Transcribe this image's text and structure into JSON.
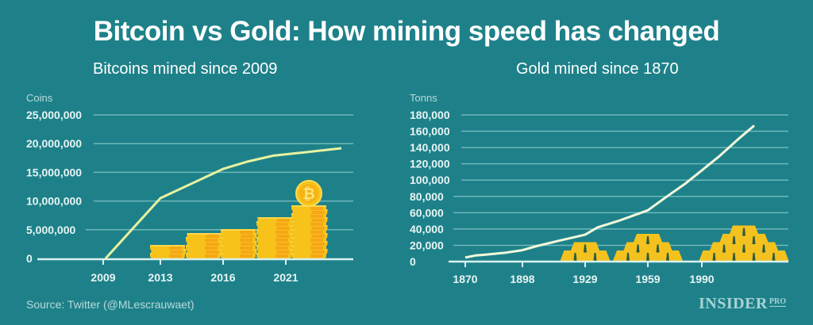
{
  "header": {
    "title": "Bitcoin vs Gold: How mining speed has changed"
  },
  "footer": {
    "source": "Source: Twitter (@MLescrauwaet)",
    "brand": "INSIDER",
    "brand_suffix": "PRO"
  },
  "colors": {
    "background": "#1e8189",
    "gridline": "#6fb7bb",
    "axis": "#d9f1f1",
    "bitcoin_line": "#e8f2a0",
    "gold_line": "#f3f8dc",
    "coin": "#f7c21a",
    "gold_bar": "#f3c21e"
  },
  "chart_data": [
    {
      "type": "line",
      "title": "Bitcoins mined since 2009",
      "xlabel": "",
      "ylabel": "Coins",
      "ylim": [
        0,
        25000000
      ],
      "yticks": [
        "0",
        "5,000,000",
        "10,000,000",
        "15,000,000",
        "20,000,000",
        "25,000,000"
      ],
      "xticks": [
        "2009",
        "2013",
        "2016",
        "2021"
      ],
      "grid": true,
      "x": [
        2009,
        2013,
        2016,
        2018,
        2020,
        2021,
        2023
      ],
      "series": [
        {
          "name": "Bitcoins mined",
          "values": [
            0,
            10500000,
            15600000,
            16900000,
            17900000,
            18400000,
            19200000
          ]
        }
      ],
      "decorations": "Stacks of gold coins growing in height, with a single bitcoin coin on top of the tallest stack"
    },
    {
      "type": "line",
      "title": "Gold mined since 1870",
      "xlabel": "",
      "ylabel": "Tonns",
      "ylim": [
        0,
        180000
      ],
      "yticks": [
        "0",
        "20,000",
        "40,000",
        "60,000",
        "80,000",
        "100,000",
        "120,000",
        "140,000",
        "160,000",
        "180,000"
      ],
      "xticks": [
        "1870",
        "1898",
        "1929",
        "1959",
        "1990"
      ],
      "grid": true,
      "x": [
        1870,
        1875,
        1880,
        1890,
        1898,
        1905,
        1915,
        1929,
        1935,
        1945,
        1959,
        1970,
        1980,
        1990,
        2000,
        2010,
        2019
      ],
      "series": [
        {
          "name": "Gold mined",
          "values": [
            5000,
            7500,
            8500,
            11000,
            14000,
            19000,
            25000,
            33000,
            42000,
            50000,
            63000,
            80000,
            95000,
            112000,
            130000,
            150000,
            167000
          ]
        }
      ],
      "decorations": "Pyramids of gold bars: 3 bars near 1929, 6 bars near 1959, 10 bars near 2000s"
    }
  ]
}
